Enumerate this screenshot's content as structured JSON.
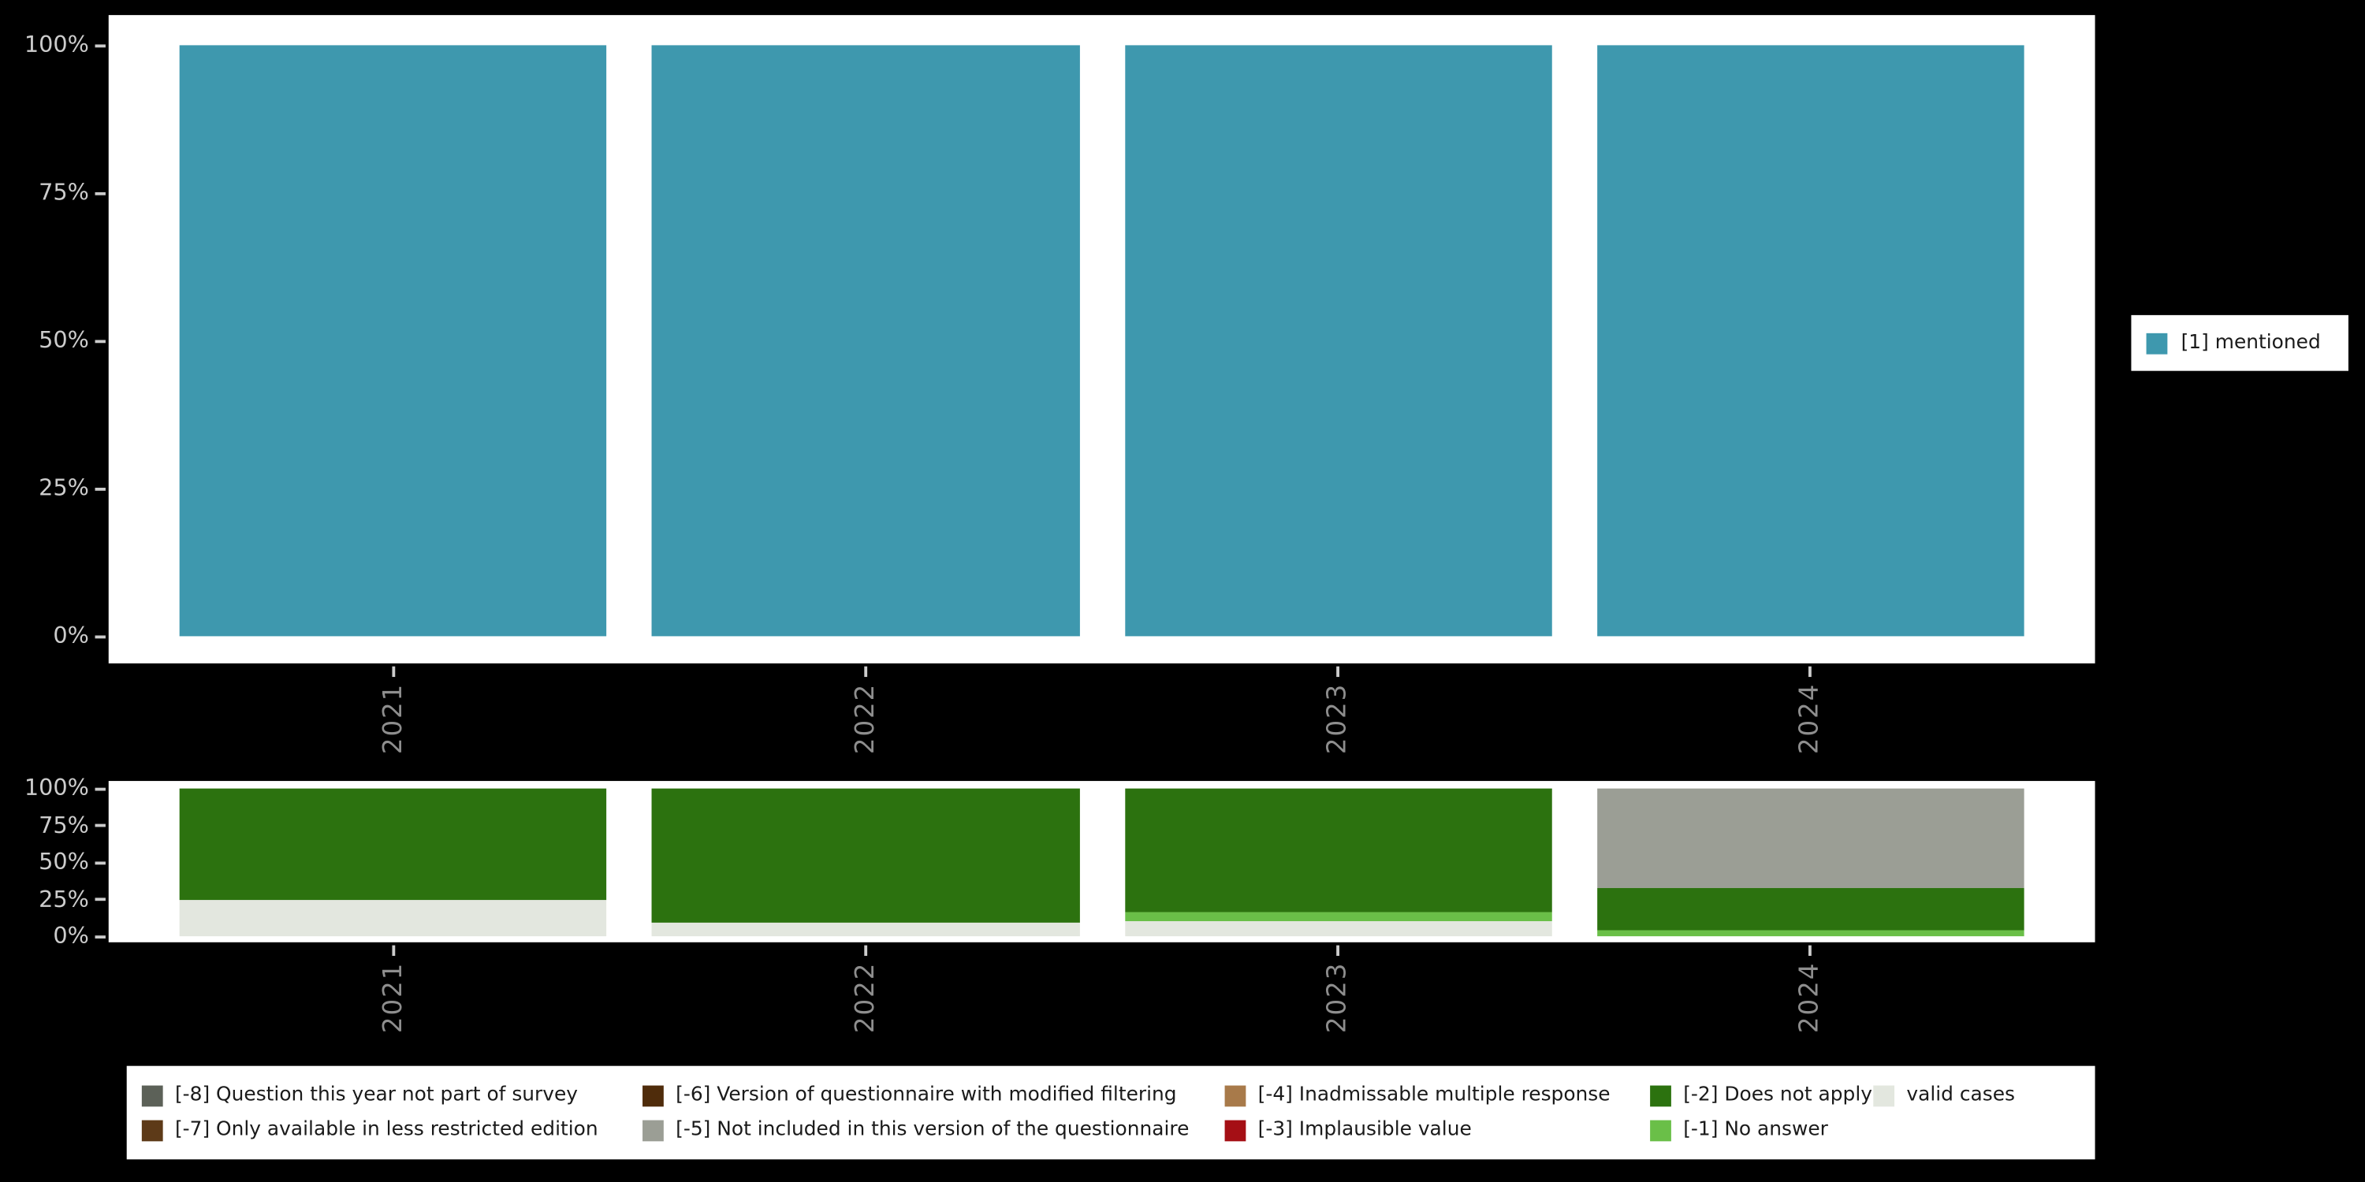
{
  "colors": {
    "background": "#000000",
    "panel": "#ffffff",
    "axis_text_y": "#cccccc",
    "axis_text_x": "#8e8e8e"
  },
  "top_legend": {
    "label": "[1] mentioned",
    "color": "#3e98ae"
  },
  "chart_data": [
    {
      "type": "bar",
      "stacked": true,
      "percent": true,
      "title": "",
      "xlabel": "",
      "ylabel": "",
      "categories": [
        "2021",
        "2022",
        "2023",
        "2024"
      ],
      "series": [
        {
          "name": "[1] mentioned",
          "color": "#3e98ae",
          "values": [
            100,
            100,
            100,
            100
          ]
        }
      ],
      "yticks": [
        "0%",
        "25%",
        "50%",
        "75%",
        "100%"
      ],
      "ylim": [
        0,
        100
      ],
      "grid": false,
      "legend_position": "right"
    },
    {
      "type": "bar",
      "stacked": true,
      "percent": true,
      "title": "",
      "xlabel": "",
      "ylabel": "",
      "categories": [
        "2021",
        "2022",
        "2023",
        "2024"
      ],
      "series": [
        {
          "name": "valid cases",
          "color": "#e3e7df",
          "values": [
            24,
            9,
            10,
            0
          ]
        },
        {
          "name": "[-1] No answer",
          "color": "#6abf48",
          "values": [
            0,
            0,
            6,
            4
          ]
        },
        {
          "name": "[-2] Does not apply",
          "color": "#2c720f",
          "values": [
            76,
            91,
            84,
            29
          ]
        },
        {
          "name": "[-5] Not included in this version of the questionnaire",
          "color": "#9b9e95",
          "values": [
            0,
            0,
            0,
            67
          ]
        }
      ],
      "yticks": [
        "0%",
        "25%",
        "50%",
        "75%",
        "100%"
      ],
      "ylim": [
        0,
        100
      ],
      "grid": false,
      "legend_position": "bottom"
    }
  ],
  "bottom_legend": {
    "items": [
      {
        "label": "[-8] Question this year not part of survey",
        "color": "#5c6158"
      },
      {
        "label": "[-6] Version of questionnaire with modified filtering",
        "color": "#4f2c0b"
      },
      {
        "label": "[-4] Inadmissable multiple response",
        "color": "#a87a4a"
      },
      {
        "label": "[-2] Does not apply",
        "color": "#2c720f"
      },
      {
        "label": "valid cases",
        "color": "#e3e7df"
      },
      {
        "label": "[-7] Only available in less restricted edition",
        "color": "#5d3a18"
      },
      {
        "label": "[-5] Not included in this version of the questionnaire",
        "color": "#9b9e95"
      },
      {
        "label": "[-3] Implausible value",
        "color": "#a50f15"
      },
      {
        "label": "[-1] No answer",
        "color": "#6abf48"
      }
    ]
  }
}
